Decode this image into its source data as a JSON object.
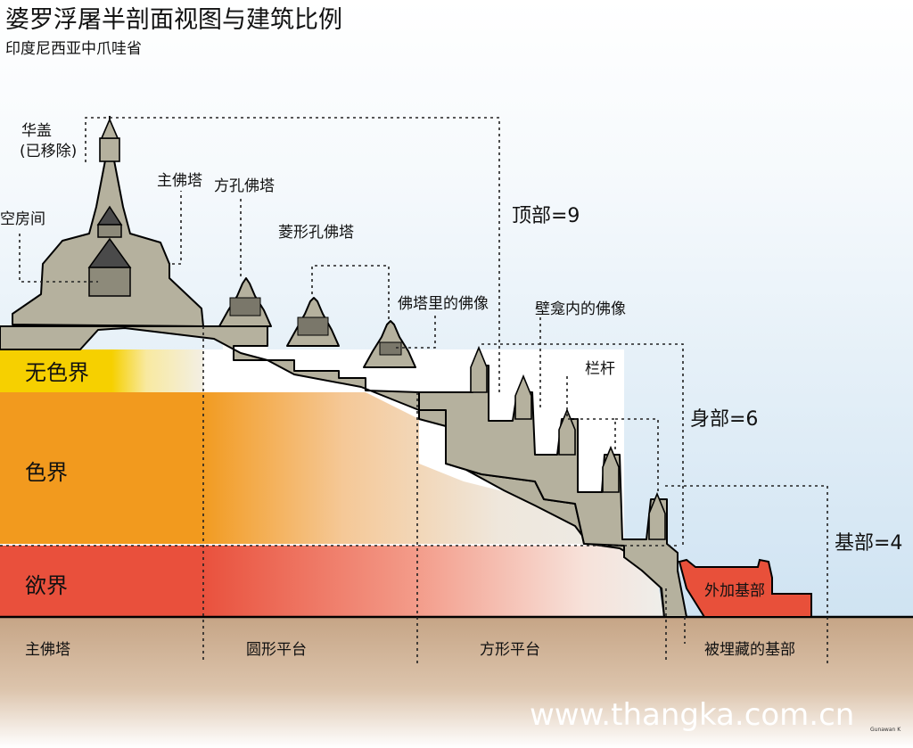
{
  "title": "婆罗浮屠半剖面视图与建筑比例",
  "subtitle": "印度尼西亚中爪哇省",
  "zones": {
    "formless": "无色界",
    "form": "色界",
    "desire": "欲界"
  },
  "labels": {
    "chattra": "华盖",
    "chattra_note": "(已移除)",
    "empty_room": "空房间",
    "main_stupa": "主佛塔",
    "square_hole_stupa": "方孔佛塔",
    "diamond_hole_stupa": "菱形孔佛塔",
    "buddha_in_stupa": "佛塔里的佛像",
    "buddha_in_niche": "壁龛内的佛像",
    "balustrade": "栏杆",
    "added_base": "外加基部",
    "buried_base": "被埋藏的基部"
  },
  "proportions": {
    "top": "顶部=9",
    "body": "身部=6",
    "foot": "基部=4"
  },
  "base_sections": {
    "main_stupa": "主佛塔",
    "circular_terraces": "圆形平台",
    "square_terraces": "方形平台"
  },
  "watermark": "www.thangka.com.cn",
  "credit": "Gunawan K",
  "colors": {
    "sky": "#cfe3f2",
    "stone": "#b5b19e",
    "formless": "#f6d000",
    "form": "#f29a1e",
    "desire": "#e9503c",
    "added_base": "#e8503a",
    "ground": "#c8a888"
  }
}
